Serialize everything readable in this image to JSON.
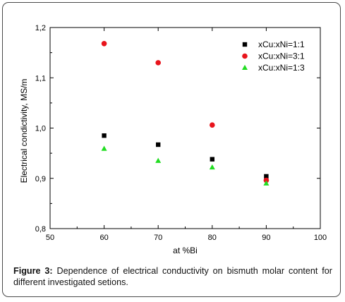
{
  "caption": {
    "label": "Figure 3:",
    "text": " Dependence of electrical conductivity on bismuth molar content for different investigated setions."
  },
  "chart_data": {
    "type": "scatter",
    "xlabel": "at %Bi",
    "ylabel": "Electrical condictivity, MS/m",
    "xlim": [
      50,
      100
    ],
    "ylim": [
      0.8,
      1.2
    ],
    "xticks": [
      50,
      60,
      70,
      80,
      90,
      100
    ],
    "yticks": [
      0.8,
      0.9,
      1.0,
      1.1,
      1.2
    ],
    "xtick_labels": [
      "50",
      "60",
      "70",
      "80",
      "90",
      "100"
    ],
    "ytick_labels": [
      "0,8",
      "0,9",
      "1,0",
      "1,1",
      "1,2"
    ],
    "grid": false,
    "legend_position": "top-right",
    "series": [
      {
        "name": "xCu:xNi=1:1",
        "marker": "square",
        "color": "#000000",
        "x": [
          60,
          70,
          80,
          90
        ],
        "y": [
          0.985,
          0.967,
          0.938,
          0.904
        ]
      },
      {
        "name": "xCu:xNi=3:1",
        "marker": "circle",
        "color": "#e8141c",
        "x": [
          60,
          70,
          80,
          90
        ],
        "y": [
          1.168,
          1.13,
          1.006,
          0.896
        ]
      },
      {
        "name": "xCu:xNi=1:3",
        "marker": "triangle",
        "color": "#22dd22",
        "x": [
          60,
          70,
          80,
          90
        ],
        "y": [
          0.959,
          0.935,
          0.922,
          0.89
        ]
      }
    ]
  }
}
